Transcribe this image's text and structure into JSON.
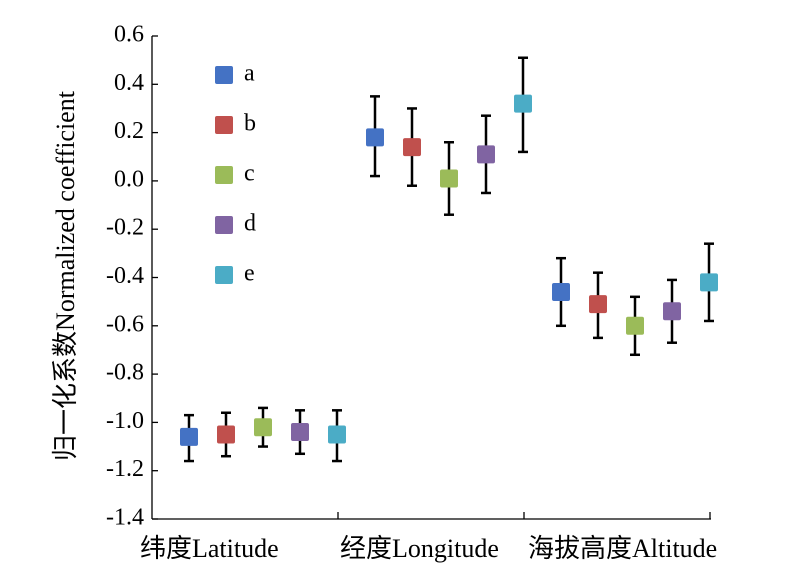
{
  "chart_data": {
    "type": "scatter",
    "title": "",
    "xlabel": "",
    "ylabel": "归一化系数Normalized coefficient",
    "categories": [
      "纬度Latitude",
      "经度Longitude",
      "海拔高度Altitude"
    ],
    "ylim": [
      -1.4,
      0.6
    ],
    "yticks": [
      "0.6",
      "0.4",
      "0.2",
      "0.0",
      "-0.2",
      "-0.4",
      "-0.6",
      "-0.8",
      "-1.0",
      "-1.2",
      "-1.4"
    ],
    "ytick_values": [
      0.6,
      0.4,
      0.2,
      0.0,
      -0.2,
      -0.4,
      -0.6,
      -0.8,
      -1.0,
      -1.2,
      -1.4
    ],
    "grid": false,
    "legend_position": "top-left",
    "error_bars": true,
    "series": [
      {
        "name": "a",
        "color": "#4472C4",
        "values": [
          -1.06,
          0.18,
          -0.46
        ],
        "err_low": [
          -1.16,
          0.02,
          -0.6
        ],
        "err_high": [
          -0.97,
          0.35,
          -0.32
        ]
      },
      {
        "name": "b",
        "color": "#C0504D",
        "values": [
          -1.05,
          0.14,
          -0.51
        ],
        "err_low": [
          -1.14,
          -0.02,
          -0.65
        ],
        "err_high": [
          -0.96,
          0.3,
          -0.38
        ]
      },
      {
        "name": "c",
        "color": "#9BBB59",
        "values": [
          -1.02,
          0.01,
          -0.6
        ],
        "err_low": [
          -1.1,
          -0.14,
          -0.72
        ],
        "err_high": [
          -0.94,
          0.16,
          -0.48
        ]
      },
      {
        "name": "d",
        "color": "#8064A2",
        "values": [
          -1.04,
          0.11,
          -0.54
        ],
        "err_low": [
          -1.13,
          -0.05,
          -0.67
        ],
        "err_high": [
          -0.95,
          0.27,
          -0.41
        ]
      },
      {
        "name": "e",
        "color": "#4BACC6",
        "values": [
          -1.05,
          0.32,
          -0.42
        ],
        "err_low": [
          -1.16,
          0.12,
          -0.58
        ],
        "err_high": [
          -0.95,
          0.51,
          -0.26
        ]
      }
    ]
  }
}
